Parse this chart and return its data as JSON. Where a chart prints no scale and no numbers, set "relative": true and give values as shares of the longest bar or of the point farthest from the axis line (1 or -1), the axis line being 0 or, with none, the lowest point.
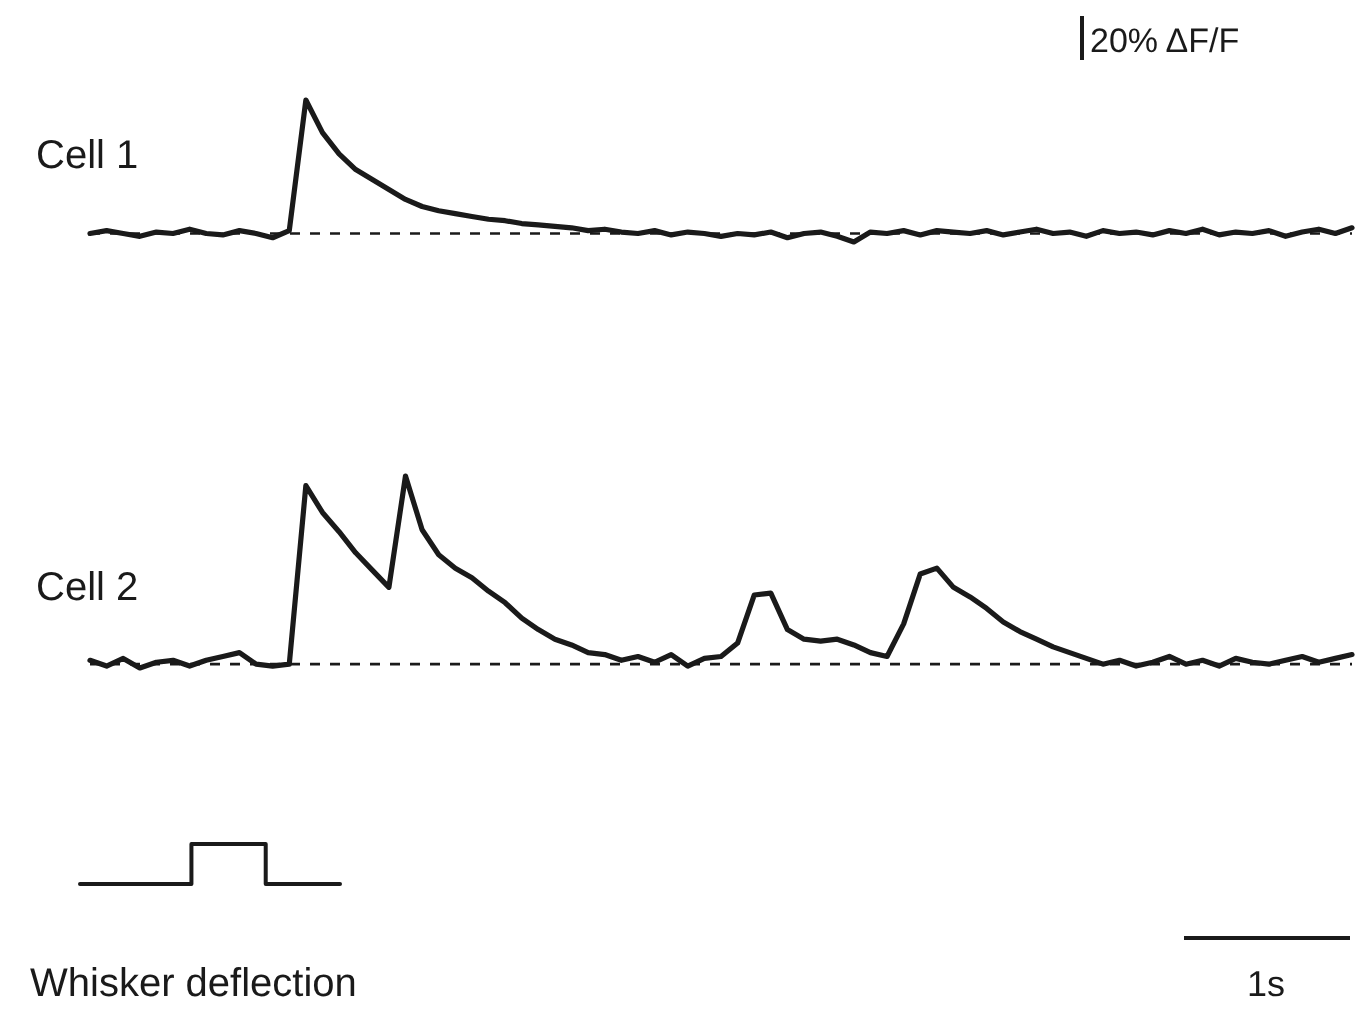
{
  "chart_data": [
    {
      "type": "line",
      "title": "Cell 1",
      "relative": true,
      "annotations": [
        "20% ΔF/F"
      ],
      "categories": [
        null,
        null,
        null,
        null,
        null,
        null,
        null,
        null,
        null,
        null,
        null,
        null,
        null,
        null,
        null,
        null,
        null,
        null,
        null,
        null,
        null,
        null,
        null,
        null,
        null,
        null,
        null,
        null,
        null,
        null,
        null,
        null,
        null,
        null,
        null,
        null,
        null,
        null,
        null,
        null,
        null,
        null,
        null,
        null,
        null,
        null,
        null,
        null,
        null,
        null,
        null,
        null,
        null,
        null,
        null,
        null,
        null,
        null,
        null,
        null,
        null,
        null,
        null,
        null,
        null,
        null,
        null,
        null,
        null,
        null,
        null,
        null,
        null,
        null,
        null,
        null,
        null
      ],
      "series": [
        {
          "color": "#1a1a1a",
          "values": [
            0.06,
            0.08,
            0.06,
            0.04,
            0.07,
            0.06,
            0.09,
            0.06,
            0.05,
            0.08,
            0.06,
            0.03,
            0.08,
            1,
            0.77,
            0.62,
            0.51,
            0.44,
            0.37,
            0.3,
            0.25,
            0.22,
            0.2,
            0.18,
            0.16,
            0.15,
            0.13,
            0.12,
            0.11,
            0.1,
            0.08,
            0.09,
            0.07,
            0.06,
            0.08,
            0.05,
            0.07,
            0.06,
            0.04,
            0.06,
            0.05,
            0.07,
            0.03,
            0.06,
            0.07,
            0.04,
            0,
            0.07,
            0.06,
            0.08,
            0.05,
            0.08,
            0.07,
            0.06,
            0.08,
            0.05,
            0.07,
            0.09,
            0.06,
            0.07,
            0.04,
            0.08,
            0.06,
            0.07,
            0.05,
            0.08,
            0.06,
            0.09,
            0.05,
            0.07,
            0.06,
            0.08,
            0.04,
            0.07,
            0.09,
            0.06,
            0.1
          ]
        }
      ],
      "ref_lines": [
        {
          "axis": "y",
          "value": 0.06,
          "color": "#1a1a1a",
          "line_style": "dashed"
        }
      ]
    },
    {
      "type": "line",
      "title": "Cell 2",
      "relative": true,
      "categories": [
        null,
        null,
        null,
        null,
        null,
        null,
        null,
        null,
        null,
        null,
        null,
        null,
        null,
        null,
        null,
        null,
        null,
        null,
        null,
        null,
        null,
        null,
        null,
        null,
        null,
        null,
        null,
        null,
        null,
        null,
        null,
        null,
        null,
        null,
        null,
        null,
        null,
        null,
        null,
        null,
        null,
        null,
        null,
        null,
        null,
        null,
        null,
        null,
        null,
        null,
        null,
        null,
        null,
        null,
        null,
        null,
        null,
        null,
        null,
        null,
        null,
        null,
        null,
        null,
        null,
        null,
        null,
        null,
        null,
        null,
        null,
        null,
        null,
        null,
        null,
        null,
        null
      ],
      "series": [
        {
          "color": "#1a1a1a",
          "values": [
            0.04,
            0.01,
            0.05,
            0,
            0.03,
            0.04,
            0.01,
            0.04,
            0.06,
            0.08,
            0.02,
            0.01,
            0.02,
            0.95,
            0.81,
            0.71,
            0.6,
            0.51,
            0.42,
            1,
            0.72,
            0.59,
            0.52,
            0.47,
            0.4,
            0.34,
            0.26,
            0.2,
            0.15,
            0.12,
            0.08,
            0.07,
            0.04,
            0.06,
            0.03,
            0.07,
            0.01,
            0.05,
            0.06,
            0.13,
            0.38,
            0.39,
            0.2,
            0.15,
            0.14,
            0.15,
            0.12,
            0.08,
            0.06,
            0.23,
            0.49,
            0.52,
            0.42,
            0.37,
            0.31,
            0.24,
            0.19,
            0.15,
            0.11,
            0.08,
            0.05,
            0.02,
            0.04,
            0.01,
            0.03,
            0.06,
            0.02,
            0.04,
            0.01,
            0.05,
            0.03,
            0.02,
            0.04,
            0.06,
            0.03,
            0.05,
            0.07
          ]
        }
      ],
      "ref_lines": [
        {
          "axis": "y",
          "value": 0.02,
          "color": "#1a1a1a",
          "line_style": "dashed"
        }
      ]
    },
    {
      "type": "step",
      "title": "Whisker deflection",
      "relative": true,
      "annotations": [
        "1s"
      ],
      "categories": [
        null,
        null,
        null,
        null,
        null,
        null,
        null,
        null
      ],
      "series": [
        {
          "color": "#1a1a1a",
          "values": [
            0,
            0,
            0,
            1,
            1,
            0,
            0,
            0
          ]
        }
      ]
    }
  ]
}
